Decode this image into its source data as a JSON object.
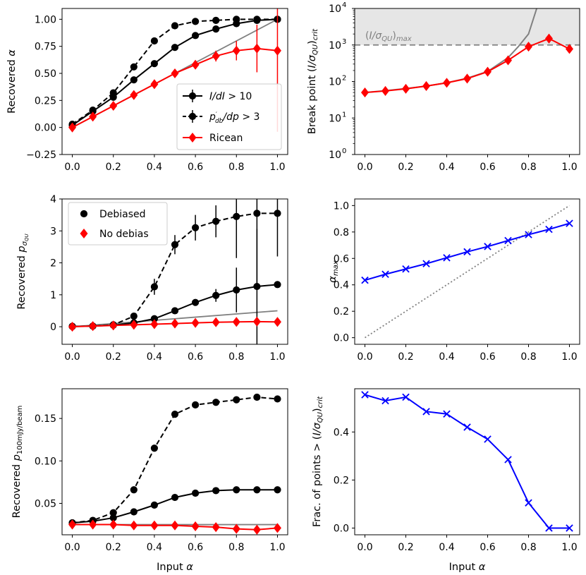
{
  "chart_data": [
    {
      "id": "p1",
      "type": "line",
      "ylabel": "Recovered α",
      "xlabel": "",
      "xlim": [
        -0.05,
        1.05
      ],
      "ylim": [
        -0.25,
        1.1
      ],
      "yscale": "linear",
      "xticks": [
        0.0,
        0.2,
        0.4,
        0.6,
        0.8,
        1.0
      ],
      "xtick_labels": [
        "0.0",
        "0.2",
        "0.4",
        "0.6",
        "0.8",
        "1.0"
      ],
      "yticks": [
        -0.25,
        0.0,
        0.25,
        0.5,
        0.75,
        1.0
      ],
      "ytick_labels": [
        "−0.25",
        "0.00",
        "0.25",
        "0.50",
        "0.75",
        "1.00"
      ],
      "grid": false,
      "legend": {
        "location": "lower-right",
        "entries": [
          {
            "label": "I/dI > 10",
            "series": 0
          },
          {
            "label": "p'db/dp > 3",
            "series": 1
          },
          {
            "label": "Ricean",
            "series": 2
          }
        ]
      },
      "x": [
        0.0,
        0.1,
        0.2,
        0.3,
        0.4,
        0.5,
        0.6,
        0.7,
        0.8,
        0.9,
        1.0
      ],
      "reference_lines": [
        {
          "name": "identity",
          "x": [
            0.0,
            1.0
          ],
          "y": [
            0.0,
            1.0
          ],
          "color": "#808080",
          "dash": "solid"
        }
      ],
      "series": [
        {
          "name": "I/dI > 10",
          "color": "#000000",
          "dash": "solid",
          "marker": "circle",
          "values": [
            0.02,
            0.15,
            0.28,
            0.44,
            0.59,
            0.74,
            0.85,
            0.91,
            0.96,
            0.99,
            1.0
          ],
          "errors": [
            0.01,
            0.01,
            0.01,
            0.01,
            0.01,
            0.01,
            0.01,
            0.01,
            0.01,
            0.02,
            0.03
          ]
        },
        {
          "name": "p'db/dp > 3",
          "color": "#000000",
          "dash": "dashed",
          "marker": "circle",
          "values": [
            0.03,
            0.16,
            0.32,
            0.56,
            0.8,
            0.94,
            0.98,
            0.99,
            1.0,
            1.0,
            1.0
          ],
          "errors": [
            0.01,
            0.01,
            0.01,
            0.02,
            0.02,
            0.01,
            0.01,
            0.01,
            0.01,
            0.01,
            0.01
          ]
        },
        {
          "name": "Ricean",
          "color": "#ff0000",
          "dash": "solid",
          "marker": "diamond",
          "values": [
            0.0,
            0.1,
            0.2,
            0.3,
            0.4,
            0.5,
            0.58,
            0.66,
            0.71,
            0.73,
            0.71
          ],
          "errors": [
            0.0,
            0.0,
            0.0,
            0.0,
            0.0,
            0.0,
            0.02,
            0.05,
            0.09,
            0.22,
            0.75
          ]
        }
      ]
    },
    {
      "id": "p2",
      "type": "line",
      "ylabel": "Break point (I/σQU)crit",
      "xlabel": "",
      "xlim": [
        -0.05,
        1.05
      ],
      "ylim": [
        1,
        10000
      ],
      "yscale": "log",
      "xticks": [
        0.0,
        0.2,
        0.4,
        0.6,
        0.8,
        1.0
      ],
      "xtick_labels": [
        "0.0",
        "0.2",
        "0.4",
        "0.6",
        "0.8",
        "1.0"
      ],
      "yticks": [
        1,
        10,
        100,
        1000,
        10000
      ],
      "ytick_labels": [
        "10",
        "10",
        "10",
        "10",
        "10"
      ],
      "ytick_exponents": [
        "0",
        "1",
        "2",
        "3",
        "4"
      ],
      "grid": false,
      "annotation": "(I/σQU)max",
      "threshold": {
        "value": 1000,
        "color": "#808080",
        "dash": "dashed",
        "shaded_above": true,
        "shade_color": "#e6e6e6"
      },
      "x": [
        0.0,
        0.1,
        0.2,
        0.3,
        0.4,
        0.5,
        0.6,
        0.7,
        0.8,
        0.9,
        1.0
      ],
      "series": [
        {
          "name": "model",
          "color": "#808080",
          "dash": "solid",
          "marker": "none",
          "x": [
            0.0,
            0.1,
            0.2,
            0.3,
            0.4,
            0.5,
            0.6,
            0.7,
            0.75,
            0.8,
            0.84
          ],
          "values": [
            50,
            56,
            64,
            75,
            92,
            123,
            188,
            450,
            900,
            2000,
            10000
          ]
        },
        {
          "name": "Break point",
          "color": "#ff0000",
          "dash": "solid",
          "marker": "diamond",
          "values": [
            50,
            55,
            63,
            75,
            92,
            120,
            185,
            380,
            900,
            1500,
            780
          ]
        }
      ]
    },
    {
      "id": "p3",
      "type": "line",
      "ylabel": "Recovered pσQU",
      "xlabel": "",
      "xlim": [
        -0.05,
        1.05
      ],
      "ylim": [
        -0.55,
        4.0
      ],
      "yscale": "linear",
      "xticks": [
        0.0,
        0.2,
        0.4,
        0.6,
        0.8,
        1.0
      ],
      "xtick_labels": [
        "0.0",
        "0.2",
        "0.4",
        "0.6",
        "0.8",
        "1.0"
      ],
      "yticks": [
        0,
        1,
        2,
        3,
        4
      ],
      "ytick_labels": [
        "0",
        "1",
        "2",
        "3",
        "4"
      ],
      "grid": false,
      "legend": {
        "location": "upper-left",
        "entries": [
          {
            "label": "Debiased",
            "marker": "circle",
            "color": "#000000"
          },
          {
            "label": "No debias",
            "marker": "diamond",
            "color": "#ff0000"
          }
        ]
      },
      "x": [
        0.0,
        0.1,
        0.2,
        0.3,
        0.4,
        0.5,
        0.6,
        0.7,
        0.8,
        0.9,
        1.0
      ],
      "reference_lines": [
        {
          "name": "identity",
          "x": [
            0.0,
            1.0
          ],
          "y": [
            0.0,
            0.5
          ],
          "color": "#808080",
          "dash": "solid"
        }
      ],
      "series": [
        {
          "name": "Debiased (solid)",
          "color": "#000000",
          "dash": "solid",
          "marker": "circle",
          "values": [
            0.01,
            0.02,
            0.05,
            0.12,
            0.25,
            0.5,
            0.76,
            0.98,
            1.15,
            1.26,
            1.32
          ],
          "errors": [
            0.0,
            0.0,
            0.0,
            0.0,
            0.02,
            0.03,
            0.06,
            0.2,
            0.7,
            1.8,
            0.06
          ]
        },
        {
          "name": "Debiased (dashed)",
          "color": "#000000",
          "dash": "dashed",
          "marker": "circle",
          "values": [
            0.01,
            0.02,
            0.06,
            0.33,
            1.25,
            2.57,
            3.1,
            3.3,
            3.45,
            3.55,
            3.55
          ],
          "errors": [
            0.0,
            0.0,
            0.02,
            0.1,
            0.25,
            0.3,
            0.4,
            0.5,
            1.3,
            2.3,
            1.35
          ]
        },
        {
          "name": "No debias",
          "color": "#ff0000",
          "dash": "solid",
          "marker": "diamond",
          "values": [
            0.0,
            0.02,
            0.04,
            0.06,
            0.08,
            0.1,
            0.12,
            0.14,
            0.15,
            0.16,
            0.15
          ],
          "errors": [
            0.0,
            0.0,
            0.0,
            0.0,
            0.0,
            0.0,
            0.0,
            0.0,
            0.0,
            0.0,
            0.0
          ]
        }
      ]
    },
    {
      "id": "p4",
      "type": "line",
      "ylabel": "αmax",
      "xlabel": "",
      "xlim": [
        -0.05,
        1.05
      ],
      "ylim": [
        -0.05,
        1.05
      ],
      "yscale": "linear",
      "xticks": [
        0.0,
        0.2,
        0.4,
        0.6,
        0.8,
        1.0
      ],
      "xtick_labels": [
        "0.0",
        "0.2",
        "0.4",
        "0.6",
        "0.8",
        "1.0"
      ],
      "yticks": [
        0.0,
        0.2,
        0.4,
        0.6,
        0.8,
        1.0
      ],
      "ytick_labels": [
        "0.0",
        "0.2",
        "0.4",
        "0.6",
        "0.8",
        "1.0"
      ],
      "grid": false,
      "x": [
        0.0,
        0.1,
        0.2,
        0.3,
        0.4,
        0.5,
        0.6,
        0.7,
        0.8,
        0.9,
        1.0
      ],
      "reference_lines": [
        {
          "name": "identity",
          "x": [
            0.0,
            1.0
          ],
          "y": [
            0.0,
            1.0
          ],
          "color": "#808080",
          "dash": "dotted"
        }
      ],
      "series": [
        {
          "name": "αmax",
          "color": "#0000ff",
          "dash": "solid",
          "marker": "x",
          "values": [
            0.435,
            0.48,
            0.52,
            0.56,
            0.605,
            0.65,
            0.69,
            0.735,
            0.78,
            0.82,
            0.865
          ]
        }
      ]
    },
    {
      "id": "p5",
      "type": "line",
      "ylabel": "Recovered p100mJy/beam",
      "xlabel": "Input α",
      "xlim": [
        -0.05,
        1.05
      ],
      "ylim": [
        0.013,
        0.185
      ],
      "yscale": "linear",
      "xticks": [
        0.0,
        0.2,
        0.4,
        0.6,
        0.8,
        1.0
      ],
      "xtick_labels": [
        "0.0",
        "0.2",
        "0.4",
        "0.6",
        "0.8",
        "1.0"
      ],
      "yticks": [
        0.05,
        0.1,
        0.15
      ],
      "ytick_labels": [
        "0.05",
        "0.10",
        "0.15"
      ],
      "grid": false,
      "x": [
        0.0,
        0.1,
        0.2,
        0.3,
        0.4,
        0.5,
        0.6,
        0.7,
        0.8,
        0.9,
        1.0
      ],
      "reference_lines": [
        {
          "name": "input",
          "x": [
            0.0,
            1.0
          ],
          "y": [
            0.025,
            0.025
          ],
          "color": "#808080",
          "dash": "solid"
        }
      ],
      "series": [
        {
          "name": "solid",
          "color": "#000000",
          "dash": "solid",
          "marker": "circle",
          "values": [
            0.027,
            0.029,
            0.033,
            0.04,
            0.048,
            0.057,
            0.062,
            0.065,
            0.066,
            0.066,
            0.066
          ],
          "errors": [
            0.001,
            0.001,
            0.001,
            0.001,
            0.001,
            0.001,
            0.001,
            0.001,
            0.001,
            0.001,
            0.001
          ]
        },
        {
          "name": "dashed",
          "color": "#000000",
          "dash": "dashed",
          "marker": "circle",
          "values": [
            0.027,
            0.03,
            0.039,
            0.066,
            0.115,
            0.155,
            0.166,
            0.169,
            0.172,
            0.175,
            0.173
          ],
          "errors": [
            0.001,
            0.001,
            0.001,
            0.001,
            0.001,
            0.001,
            0.002,
            0.002,
            0.002,
            0.002,
            0.003
          ]
        },
        {
          "name": "red",
          "color": "#ff0000",
          "dash": "solid",
          "marker": "diamond",
          "values": [
            0.025,
            0.025,
            0.025,
            0.024,
            0.024,
            0.024,
            0.023,
            0.022,
            0.02,
            0.019,
            0.021
          ],
          "errors": [
            0.0,
            0.0,
            0.0,
            0.0,
            0.0,
            0.0,
            0.0,
            0.0,
            0.0,
            0.0,
            0.0
          ]
        }
      ]
    },
    {
      "id": "p6",
      "type": "line",
      "ylabel": "Frac. of points > (I/σQU)crit",
      "xlabel": "Input α",
      "xlim": [
        -0.05,
        1.05
      ],
      "ylim": [
        -0.028,
        0.58
      ],
      "yscale": "linear",
      "xticks": [
        0.0,
        0.2,
        0.4,
        0.6,
        0.8,
        1.0
      ],
      "xtick_labels": [
        "0.0",
        "0.2",
        "0.4",
        "0.6",
        "0.8",
        "1.0"
      ],
      "yticks": [
        0.0,
        0.2,
        0.4
      ],
      "ytick_labels": [
        "0.0",
        "0.2",
        "0.4"
      ],
      "grid": false,
      "x": [
        0.0,
        0.1,
        0.2,
        0.3,
        0.4,
        0.5,
        0.6,
        0.7,
        0.8,
        0.9,
        1.0
      ],
      "series": [
        {
          "name": "fraction",
          "color": "#0000ff",
          "dash": "solid",
          "marker": "x",
          "values": [
            0.555,
            0.53,
            0.545,
            0.485,
            0.475,
            0.42,
            0.37,
            0.285,
            0.105,
            0.0,
            0.0
          ]
        }
      ]
    }
  ]
}
